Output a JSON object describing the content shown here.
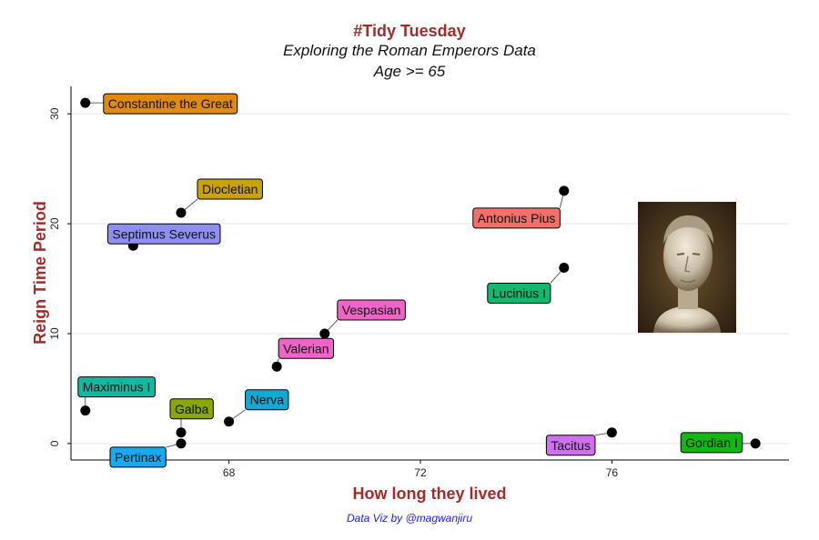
{
  "header": {
    "title": "#Tidy Tuesday",
    "subtitle": "Exploring the Roman Emperors Data",
    "subtitle2": "Age >= 65"
  },
  "caption": "Data Viz by @magwanjiru",
  "image": {
    "icon": "emperor-bust-portrait-image"
  },
  "chart_data": {
    "type": "scatter",
    "xlabel": "How long they lived",
    "ylabel": "Reign Time Period",
    "xlim": [
      64.7,
      79.7
    ],
    "ylim": [
      -1.5,
      32.5
    ],
    "xticks": [
      68,
      72,
      76
    ],
    "yticks": [
      0,
      10,
      20,
      30
    ],
    "grid": "horizontal",
    "point_color": "#000000",
    "points": [
      {
        "name": "Constantine the Great",
        "x": 65,
        "y": 31,
        "color": "#e08a10"
      },
      {
        "name": "Diocletian",
        "x": 67,
        "y": 21,
        "color": "#c9a20a"
      },
      {
        "name": "Septimus Severus",
        "x": 66,
        "y": 18,
        "color": "#8f8ff2"
      },
      {
        "name": "Antonius Pius",
        "x": 75,
        "y": 23,
        "color": "#f2706a"
      },
      {
        "name": "Lucinius I",
        "x": 75,
        "y": 16,
        "color": "#12b86e"
      },
      {
        "name": "Vespasian",
        "x": 70,
        "y": 10,
        "color": "#f064c8"
      },
      {
        "name": "Valerian",
        "x": 69,
        "y": 7,
        "color": "#f064c8"
      },
      {
        "name": "Maximinus I",
        "x": 65,
        "y": 3,
        "color": "#12b8a0"
      },
      {
        "name": "Galba",
        "x": 67,
        "y": 1,
        "color": "#88a80a"
      },
      {
        "name": "Nerva",
        "x": 68,
        "y": 2,
        "color": "#12aad2"
      },
      {
        "name": "Pertinax",
        "x": 67,
        "y": 0,
        "color": "#18aaf0"
      },
      {
        "name": "Tacitus",
        "x": 76,
        "y": 1,
        "color": "#d070f0"
      },
      {
        "name": "Gordian I",
        "x": 79,
        "y": 0,
        "color": "#12b812"
      }
    ]
  }
}
